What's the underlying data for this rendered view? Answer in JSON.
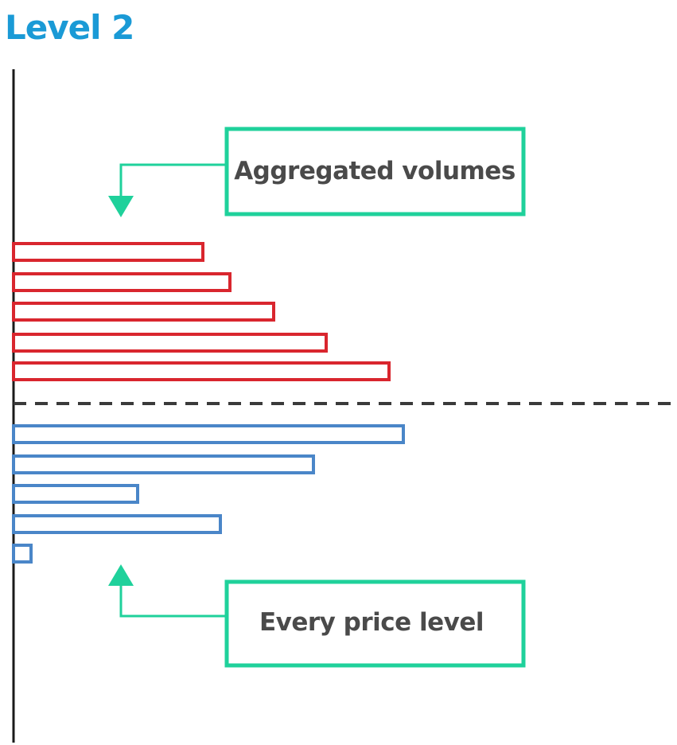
{
  "title": "Level 2",
  "colors": {
    "title": "#1a9ad6",
    "ask": "#d9262e",
    "bid": "#4a86c8",
    "callout": "#1fd19b",
    "axis": "#1a1a1a",
    "separator": "#3a3a3a",
    "label": "#4a4a4a"
  },
  "callouts": {
    "top": "Aggregated volumes",
    "bottom": "Every price level"
  },
  "chart_data": {
    "type": "bar",
    "orientation": "horizontal",
    "series": [
      {
        "side": "ask",
        "values": [
          238,
          272,
          327,
          393,
          472
        ]
      },
      {
        "side": "bid",
        "values": [
          490,
          377,
          156,
          260,
          22
        ]
      }
    ],
    "separator": "dashed",
    "title": "Level 2"
  }
}
